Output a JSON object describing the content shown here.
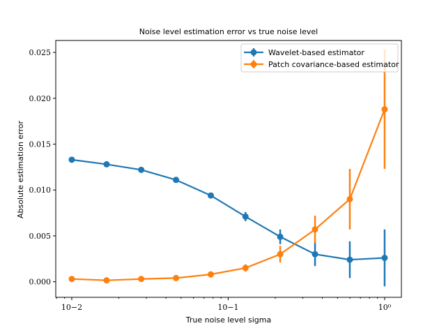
{
  "chart_data": {
    "type": "line",
    "title": "Noise level estimation error vs true noise level",
    "xlabel": "True noise level sigma",
    "ylabel": "Absolute estimation error",
    "xscale": "log",
    "xlim": [
      0.0079,
      1.28
    ],
    "ylim": [
      -0.0017,
      0.0263
    ],
    "x_ticks": [
      0.01,
      0.1,
      1
    ],
    "x_tick_labels": [
      "10−2",
      "10−1",
      "10⁰"
    ],
    "y_ticks": [
      0,
      0.005,
      0.01,
      0.015,
      0.02,
      0.025
    ],
    "y_tick_labels": [
      "0.000",
      "0.005",
      "0.010",
      "0.015",
      "0.020",
      "0.025"
    ],
    "grid": false,
    "legend_position": "top-right",
    "x": [
      0.01,
      0.0167,
      0.0278,
      0.0464,
      0.0774,
      0.129,
      0.215,
      0.359,
      0.599,
      1.0
    ],
    "series": [
      {
        "name": "Wavelet-based estimator",
        "color": "#1f77b4",
        "values": [
          0.0133,
          0.0128,
          0.0122,
          0.0111,
          0.0094,
          0.0071,
          0.0049,
          0.003,
          0.0024,
          0.0026
        ],
        "errors": [
          0.0001,
          0.0001,
          0.0001,
          0.0001,
          0.0002,
          0.0005,
          0.0008,
          0.0013,
          0.002,
          0.0031
        ]
      },
      {
        "name": "Patch covariance-based estimator",
        "color": "#ff7f0e",
        "values": [
          0.0003,
          0.00015,
          0.0003,
          0.0004,
          0.0008,
          0.0015,
          0.003,
          0.0057,
          0.009,
          0.0188
        ],
        "errors": [
          0.0001,
          0.0001,
          0.0001,
          0.0001,
          0.0003,
          0.0004,
          0.0009,
          0.0015,
          0.0033,
          0.0065
        ]
      }
    ]
  }
}
